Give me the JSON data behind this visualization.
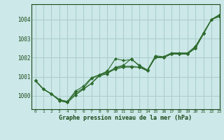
{
  "title": "Graphe pression niveau de la mer (hPa)",
  "bg_color": "#cce8e8",
  "grid_color": "#aacccc",
  "line_color": "#2d6b2d",
  "text_color": "#1a4a1a",
  "xlim": [
    -0.5,
    23
  ],
  "ylim": [
    999.3,
    1004.8
  ],
  "yticks": [
    1000,
    1001,
    1002,
    1003,
    1004
  ],
  "xticks": [
    0,
    1,
    2,
    3,
    4,
    5,
    6,
    7,
    8,
    9,
    10,
    11,
    12,
    13,
    14,
    15,
    16,
    17,
    18,
    19,
    20,
    21,
    22,
    23
  ],
  "series": [
    [
      1000.8,
      1000.35,
      1000.1,
      999.75,
      999.65,
      1000.05,
      1000.35,
      1000.65,
      1001.05,
      1001.15,
      1001.5,
      1001.6,
      1001.95,
      1001.55,
      1001.35,
      1002.05,
      1002.0,
      1002.2,
      1002.2,
      1002.2,
      1002.55,
      1003.3,
      1004.0,
      1004.25
    ],
    [
      1000.8,
      1000.35,
      1000.1,
      999.75,
      999.65,
      1000.05,
      1000.35,
      1000.65,
      1001.1,
      1001.3,
      1001.95,
      1001.85,
      1001.9,
      1001.6,
      1001.35,
      1002.1,
      1002.05,
      1002.25,
      1002.25,
      1002.25,
      1002.6,
      1003.3,
      1004.0,
      1004.25
    ],
    [
      1000.8,
      1000.35,
      1000.1,
      999.8,
      999.7,
      1000.15,
      1000.4,
      1000.9,
      1001.1,
      1001.25,
      1001.45,
      1001.55,
      1001.55,
      1001.5,
      1001.3,
      1002.05,
      1002.0,
      1002.2,
      1002.2,
      1002.2,
      1002.5,
      1003.25,
      1004.0,
      1004.2
    ],
    [
      1000.8,
      1000.35,
      1000.1,
      999.8,
      999.7,
      1000.25,
      1000.5,
      1000.95,
      1001.1,
      1001.2,
      1001.4,
      1001.5,
      1001.5,
      1001.5,
      1001.35,
      1002.0,
      1002.0,
      1002.2,
      1002.2,
      1002.2,
      1002.5,
      1003.25,
      1004.0,
      1004.15
    ]
  ]
}
